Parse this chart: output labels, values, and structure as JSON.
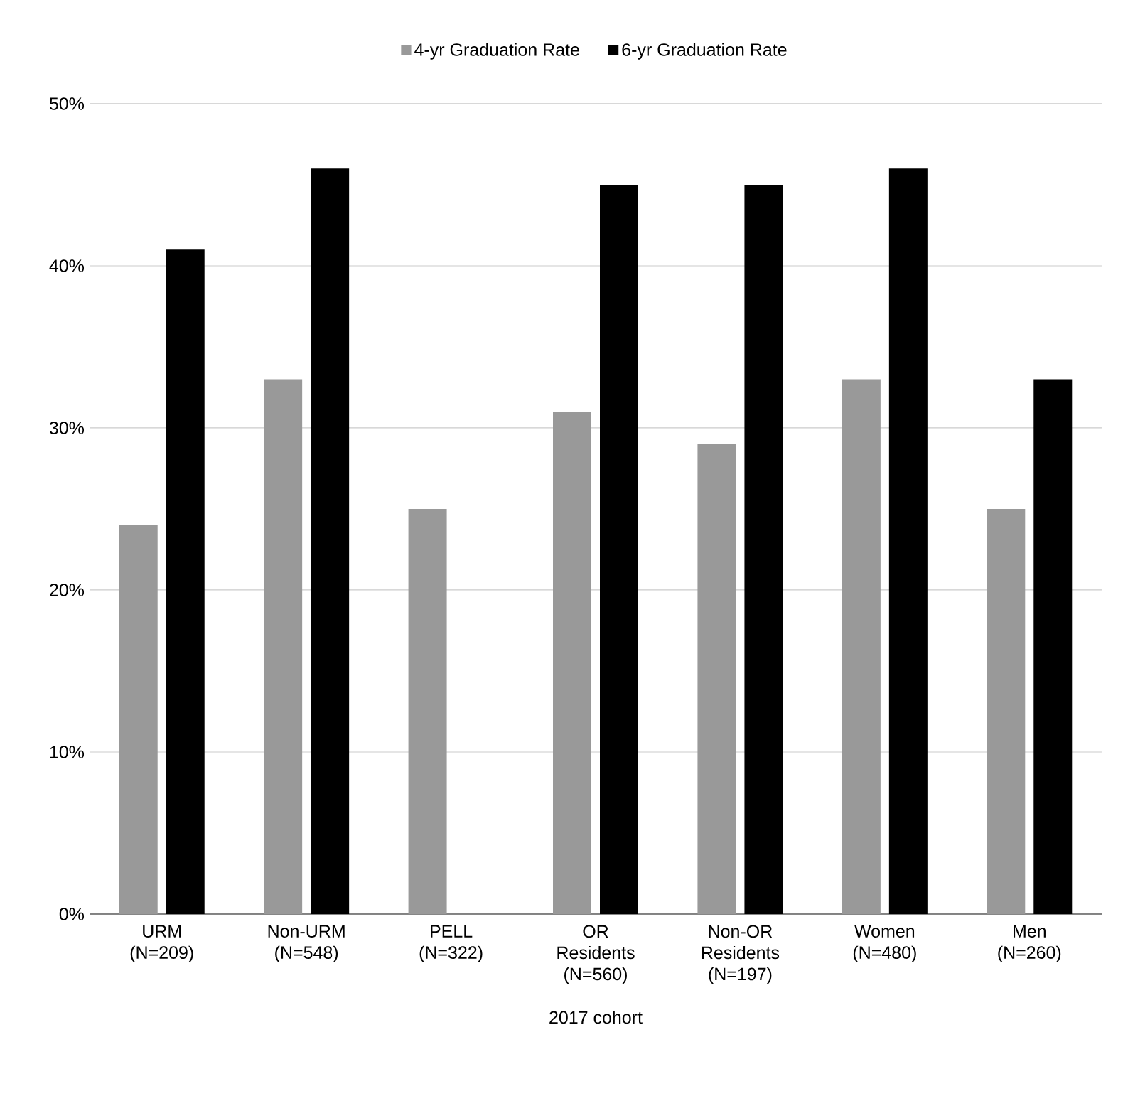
{
  "chart_data": {
    "type": "bar",
    "xlabel": "2017 cohort",
    "categories": [
      "URM (N=209)",
      "Non-URM (N=548)",
      "PELL (N=322)",
      "OR Residents (N=560)",
      "Non-OR Residents (N=197)",
      "Women (N=480)",
      "Men (N=260)"
    ],
    "series": [
      {
        "name": "4-yr Graduation Rate",
        "color": "#999999",
        "values": [
          24,
          33,
          25,
          31,
          29,
          33,
          25
        ]
      },
      {
        "name": "6-yr Graduation Rate",
        "color": "#000000",
        "values": [
          41,
          46,
          null,
          45,
          45,
          46,
          33
        ]
      }
    ],
    "ylim": [
      0,
      50
    ],
    "yticks": [
      {
        "value": 0,
        "label": "0%"
      },
      {
        "value": 10,
        "label": "10%"
      },
      {
        "value": 20,
        "label": "20%"
      },
      {
        "value": 30,
        "label": "30%"
      },
      {
        "value": 40,
        "label": "40%"
      },
      {
        "value": 50,
        "label": "50%"
      }
    ],
    "grid": "y",
    "legend": "top"
  }
}
